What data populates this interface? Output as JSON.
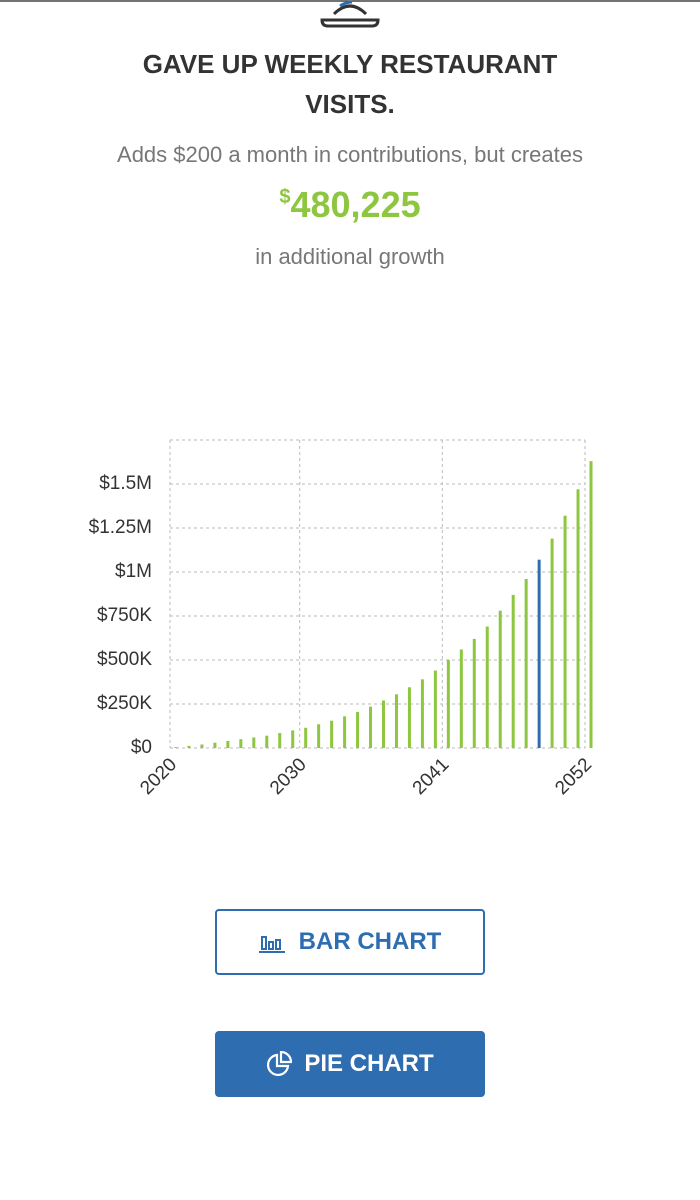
{
  "header": {
    "title": "GAVE UP WEEKLY RESTAURANT VISITS.",
    "subtitle": "Adds $200 a month in contributions, but creates",
    "currency": "$",
    "amount": "480,225",
    "caption": "in additional growth"
  },
  "chart_data": {
    "type": "bar",
    "x": [
      2020,
      2021,
      2022,
      2023,
      2024,
      2025,
      2026,
      2027,
      2028,
      2029,
      2030,
      2031,
      2032,
      2033,
      2034,
      2035,
      2036,
      2037,
      2038,
      2039,
      2040,
      2041,
      2042,
      2043,
      2044,
      2045,
      2046,
      2047,
      2048,
      2049,
      2050,
      2051,
      2052
    ],
    "values": [
      5000,
      12000,
      20000,
      30000,
      40000,
      50000,
      60000,
      70000,
      85000,
      100000,
      115000,
      135000,
      155000,
      180000,
      205000,
      235000,
      270000,
      305000,
      345000,
      390000,
      440000,
      500000,
      560000,
      620000,
      690000,
      780000,
      870000,
      960000,
      1070000,
      1190000,
      1320000,
      1470000,
      1630000
    ],
    "color": "#8dc63f",
    "highlight_x": 2048,
    "highlight_color": "#2e6db0",
    "xlim": [
      2020,
      2052
    ],
    "xticks": [
      2020,
      2030,
      2041,
      2052
    ],
    "ylim": [
      0,
      1750000
    ],
    "yticks": [
      {
        "value": 0,
        "label": "$0"
      },
      {
        "value": 250000,
        "label": "$250K"
      },
      {
        "value": 500000,
        "label": "$500K"
      },
      {
        "value": 750000,
        "label": "$750K"
      },
      {
        "value": 1000000,
        "label": "$1M"
      },
      {
        "value": 1250000,
        "label": "$1.25M"
      },
      {
        "value": 1500000,
        "label": "$1.5M"
      }
    ],
    "grid": true
  },
  "buttons": {
    "bar": "BAR CHART",
    "pie": "PIE CHART"
  }
}
